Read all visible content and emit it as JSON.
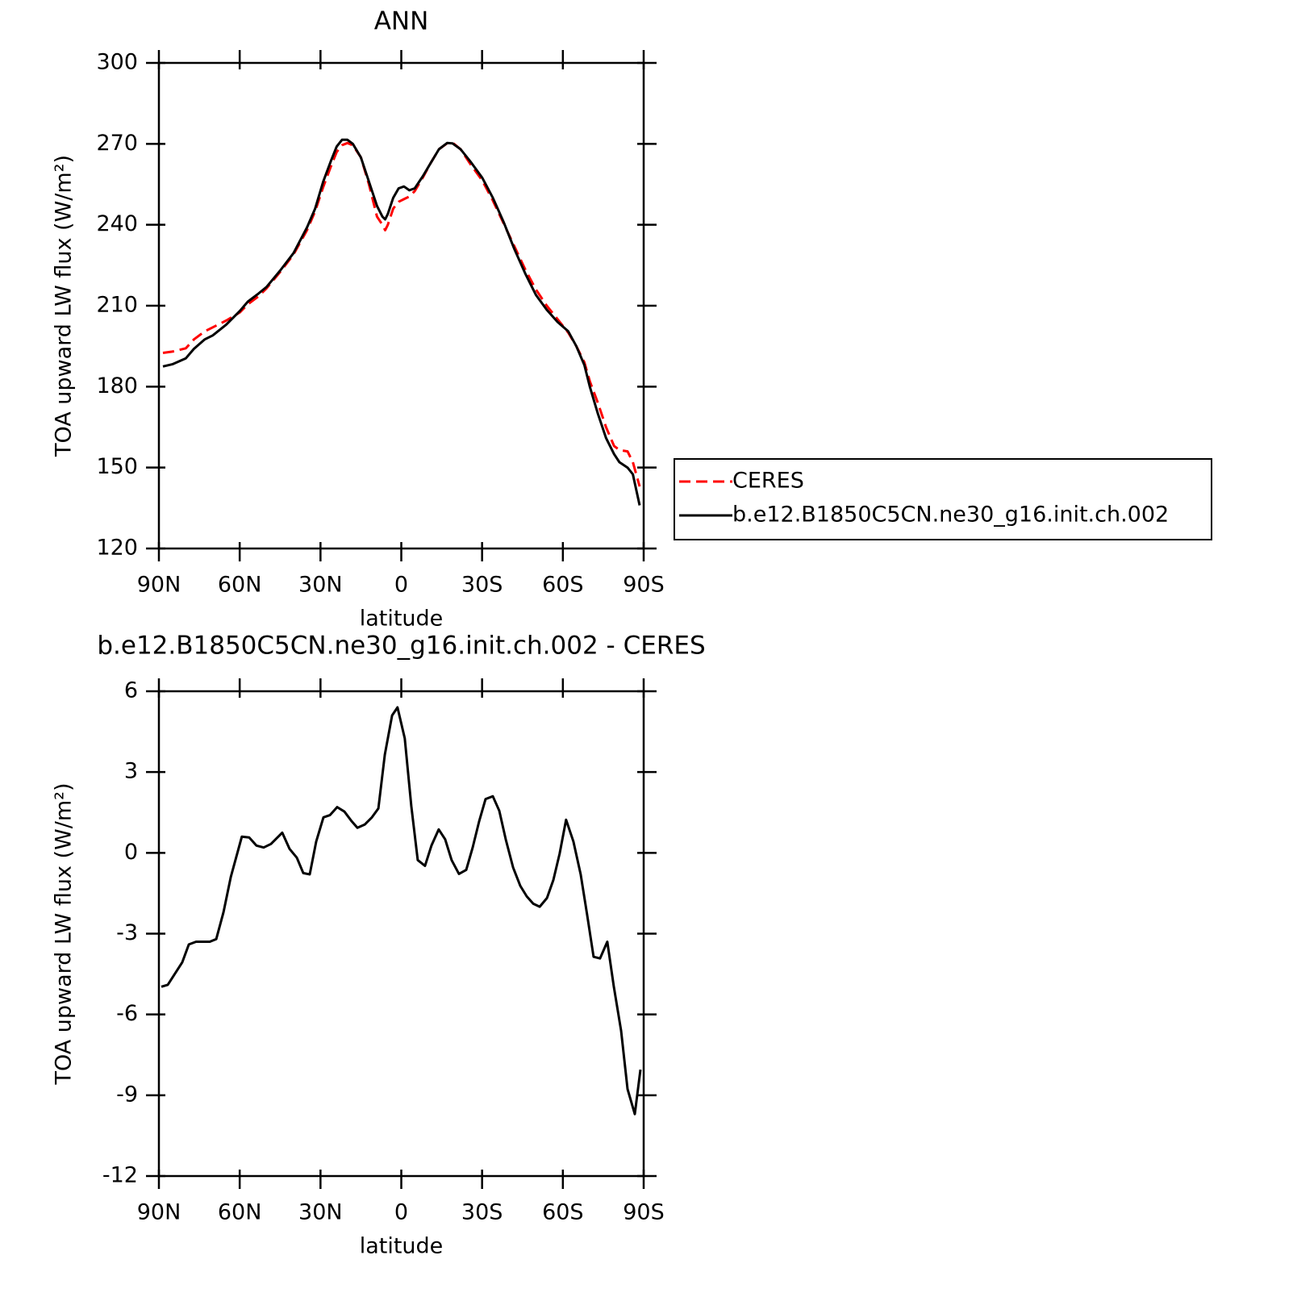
{
  "chart_data": [
    {
      "type": "line",
      "title": "ANN",
      "xlabel": "latitude",
      "ylabel": "TOA upward LW flux (W/m²)",
      "x": [
        88.5,
        85,
        80,
        77,
        73,
        70,
        65,
        60,
        57,
        53,
        50,
        45,
        40,
        35,
        32,
        29,
        26,
        24,
        22,
        20,
        18,
        15,
        12,
        9,
        7,
        6,
        5,
        3,
        1,
        -1,
        -3,
        -5,
        -8,
        -11,
        -14,
        -17,
        -19,
        -22,
        -26,
        -30,
        -34,
        -38,
        -42,
        -46,
        -50,
        -54,
        -58,
        -62,
        -65,
        -68,
        -70,
        -73,
        -76,
        -79,
        -81,
        -84,
        -86,
        -88.5
      ],
      "series": [
        {
          "name": "CERES",
          "color": "#ff0000",
          "dashed": true,
          "values": [
            192.5,
            193,
            194.2,
            197.5,
            200.5,
            202,
            204.5,
            207.5,
            210.5,
            213.5,
            216.5,
            222.5,
            229,
            238,
            245,
            254,
            262,
            267,
            269.5,
            270.3,
            269.5,
            265,
            255,
            243,
            240,
            238,
            240,
            246,
            248.5,
            249.5,
            250.5,
            252.5,
            257.5,
            263,
            268,
            270.2,
            270.5,
            268,
            262,
            256.5,
            249,
            240.5,
            232,
            223.5,
            216,
            210,
            205,
            200,
            195,
            189,
            182,
            174,
            165,
            158,
            156.5,
            156,
            152,
            143
          ]
        },
        {
          "name": "b.e12.B1850C5CN.ne30_g16.init.ch.002",
          "color": "#000000",
          "dashed": false,
          "values": [
            187.5,
            188.3,
            190.5,
            194,
            197.5,
            199,
            203,
            208,
            211.5,
            214.5,
            217,
            223,
            229.5,
            239,
            246,
            256,
            264,
            269,
            271.5,
            271.5,
            270,
            265,
            256,
            247,
            243,
            242,
            244,
            250,
            253.5,
            254.2,
            252.8,
            253.5,
            258,
            263,
            268,
            270.3,
            270.2,
            268,
            263,
            257.5,
            250,
            241,
            231,
            222,
            214,
            208.5,
            204,
            200.5,
            195,
            188,
            180,
            170,
            161,
            155,
            152,
            150,
            147.5,
            136
          ]
        }
      ],
      "xlim": [
        90,
        -90
      ],
      "xticks": [
        {
          "value": 90,
          "label": "90N"
        },
        {
          "value": 60,
          "label": "60N"
        },
        {
          "value": 30,
          "label": "30N"
        },
        0,
        {
          "value": -30,
          "label": "30S"
        },
        {
          "value": -60,
          "label": "60S"
        },
        {
          "value": -90,
          "label": "90S"
        }
      ],
      "ylim": [
        120,
        300
      ],
      "yticks": [
        120,
        150,
        180,
        210,
        240,
        270,
        300
      ],
      "legend": "right"
    },
    {
      "type": "line",
      "title": "b.e12.B1850C5CN.ne30_g16.init.ch.002 - CERES",
      "xlabel": "latitude",
      "ylabel": "TOA upward LW flux (W/m²)",
      "x": [
        89.1,
        86.7,
        81.3,
        78.9,
        76.2,
        71.1,
        68.7,
        66.0,
        63.3,
        59.2,
        56.5,
        53.8,
        51.1,
        48.4,
        44.2,
        41.5,
        38.8,
        36.4,
        34.0,
        31.6,
        28.9,
        26.5,
        23.8,
        21.1,
        18.4,
        16.3,
        13.6,
        10.9,
        8.5,
        6.1,
        3.4,
        1.4,
        -1.3,
        -3.7,
        -6.1,
        -8.8,
        -11.2,
        -13.9,
        -16.3,
        -18.7,
        -21.4,
        -24.1,
        -26.5,
        -28.9,
        -31.3,
        -34.0,
        -36.4,
        -38.8,
        -41.5,
        -44.2,
        -46.6,
        -49.0,
        -51.4,
        -54.1,
        -56.5,
        -58.8,
        -61.2,
        -63.9,
        -66.6,
        -69.0,
        -71.4,
        -73.8,
        -76.5,
        -78.9,
        -81.6,
        -84.0,
        -86.7,
        -88.8
      ],
      "series": [
        {
          "color": "#000000",
          "dashed": false,
          "values": [
            -4.97,
            -4.9,
            -4.06,
            -3.4,
            -3.3,
            -3.3,
            -3.2,
            -2.2,
            -0.9,
            0.6,
            0.57,
            0.27,
            0.2,
            0.33,
            0.75,
            0.15,
            -0.18,
            -0.75,
            -0.8,
            0.42,
            1.32,
            1.4,
            1.7,
            1.53,
            1.17,
            0.93,
            1.05,
            1.32,
            1.65,
            3.65,
            5.1,
            5.4,
            4.25,
            1.74,
            -0.27,
            -0.48,
            0.27,
            0.87,
            0.5,
            -0.27,
            -0.78,
            -0.63,
            0.2,
            1.17,
            2.0,
            2.1,
            1.56,
            0.5,
            -0.54,
            -1.23,
            -1.62,
            -1.89,
            -2.0,
            -1.68,
            -1.0,
            -0.03,
            1.23,
            0.42,
            -0.8,
            -2.3,
            -3.86,
            -3.92,
            -3.3,
            -4.95,
            -6.6,
            -8.77,
            -9.7,
            -8.05
          ]
        }
      ],
      "xlim": [
        90,
        -90
      ],
      "xticks": [
        {
          "value": 90,
          "label": "90N"
        },
        {
          "value": 60,
          "label": "60N"
        },
        {
          "value": 30,
          "label": "30N"
        },
        0,
        {
          "value": -30,
          "label": "30S"
        },
        {
          "value": -60,
          "label": "60S"
        },
        {
          "value": -90,
          "label": "90S"
        }
      ],
      "ylim": [
        -12,
        6
      ],
      "yticks": [
        -12,
        -9,
        -6,
        -3,
        0,
        3,
        6
      ]
    }
  ]
}
